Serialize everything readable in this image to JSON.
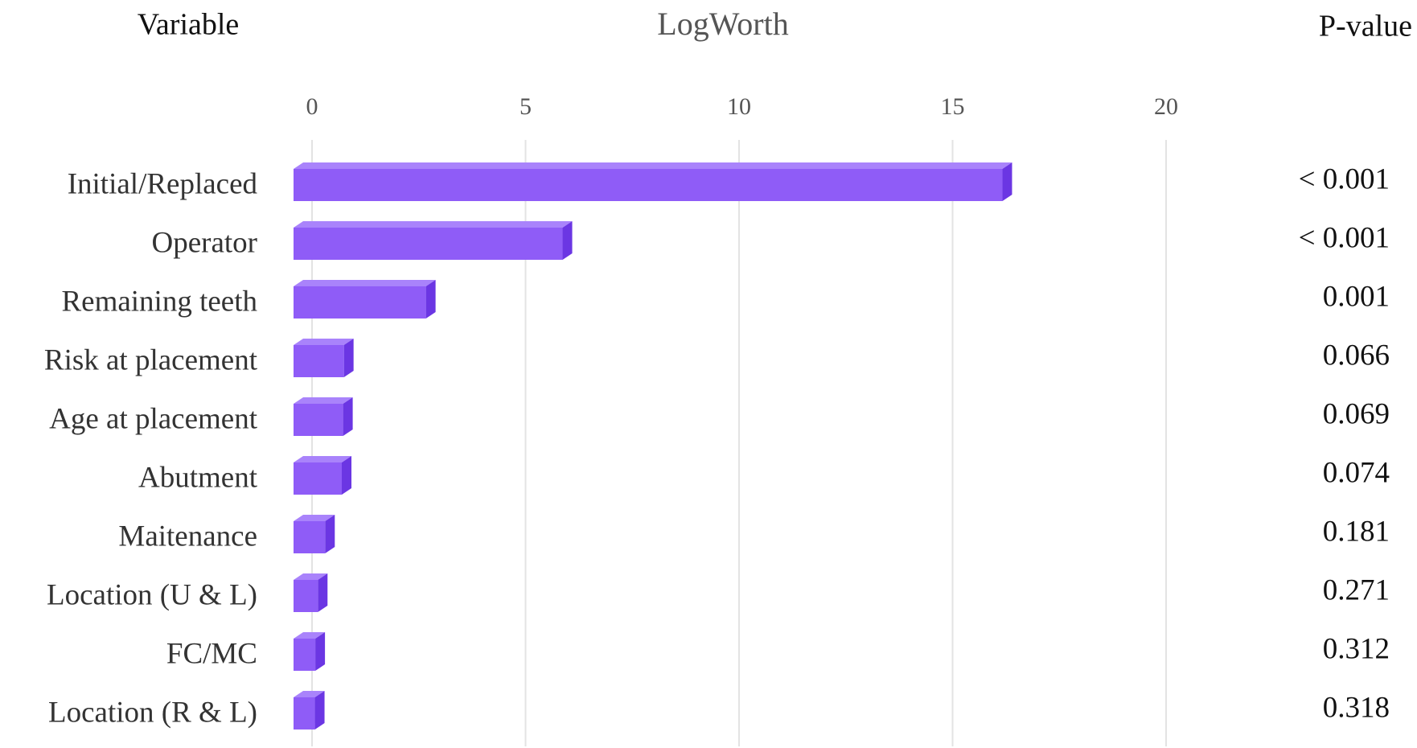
{
  "chart_data": {
    "type": "bar3d_horizontal",
    "title_left": "Variable",
    "title": "LogWorth",
    "p_value_label": "P-value",
    "categories": [
      "Initial/Replaced",
      "Operator",
      "Remaining teeth",
      "Risk at placement",
      "Age at placement",
      "Abutment",
      "Maitenance",
      "Location (U & L)",
      "FC/MC",
      "Location (R & L)"
    ],
    "values": [
      16.6,
      6.3,
      3.1,
      1.18,
      1.16,
      1.13,
      0.74,
      0.57,
      0.51,
      0.5
    ],
    "p_values": [
      "< 0.001",
      "< 0.001",
      "0.001",
      "0.066",
      "0.069",
      "0.074",
      "0.181",
      "0.271",
      "0.312",
      "0.318"
    ],
    "color": "#8f5cf7",
    "xlim": [
      0,
      20
    ],
    "xticks": [
      0,
      5,
      10,
      15,
      20
    ],
    "grid": true
  }
}
